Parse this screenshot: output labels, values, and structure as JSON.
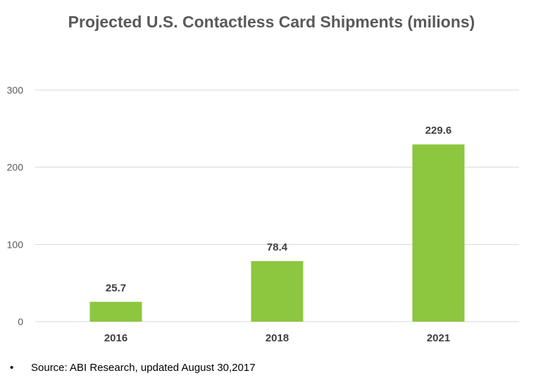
{
  "chart_data": {
    "type": "bar",
    "title": "Projected U.S. Contactless Card Shipments (milions)",
    "categories": [
      "2016",
      "2018",
      "2021"
    ],
    "values": [
      25.7,
      78.4,
      229.6
    ],
    "data_labels": [
      "25.7",
      "78.4",
      "229.6"
    ],
    "ylim": [
      0,
      300
    ],
    "yticks": [
      0,
      100,
      200,
      300
    ],
    "ytick_labels": [
      "0",
      "100",
      "200",
      "300"
    ],
    "xlabel": "",
    "ylabel": "",
    "grid": true,
    "legend": "none",
    "bar_color": "#8dc63f"
  },
  "footnote": {
    "bullet": "•",
    "text": "Source: ABI Research, updated August 30,2017"
  }
}
